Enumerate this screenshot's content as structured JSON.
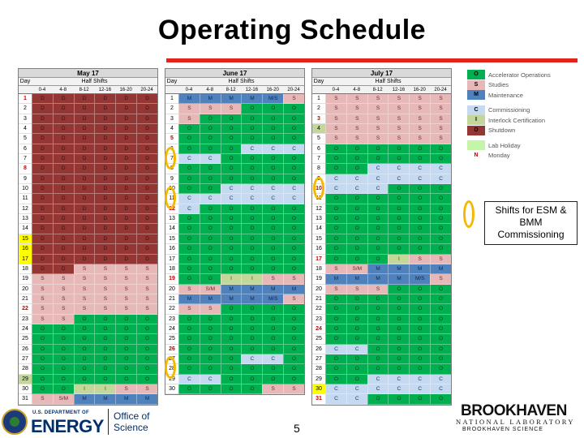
{
  "title": "Operating Schedule",
  "page_number": "5",
  "callout": "Shifts for ESM & BMM Commissioning",
  "months": [
    {
      "name": "May 17",
      "day_label": "Day",
      "half_label": "Half Shifts",
      "cols": [
        "0-4",
        "4-8",
        "8-12",
        "12-16",
        "16-20",
        "20-24"
      ],
      "days": [
        {
          "d": "1",
          "s": "D D D D D D",
          "mark": "red"
        },
        {
          "d": "2",
          "s": "D D D D D D"
        },
        {
          "d": "3",
          "s": "D D D D D D"
        },
        {
          "d": "4",
          "s": "D D D D D D"
        },
        {
          "d": "5",
          "s": "D D D D D D"
        },
        {
          "d": "6",
          "s": "D D D D D D"
        },
        {
          "d": "7",
          "s": "D D D D D D"
        },
        {
          "d": "8",
          "s": "D D D D D D",
          "mark": "red"
        },
        {
          "d": "9",
          "s": "D D D D D D"
        },
        {
          "d": "10",
          "s": "D D D D D D"
        },
        {
          "d": "11",
          "s": "D D D D D D"
        },
        {
          "d": "12",
          "s": "D D D D D D"
        },
        {
          "d": "13",
          "s": "D D D D D D"
        },
        {
          "d": "14",
          "s": "D D D D D D"
        },
        {
          "d": "15",
          "s": "D D D D D D",
          "mark": "yellow"
        },
        {
          "d": "16",
          "s": "D D D D D D",
          "mark": "yellow"
        },
        {
          "d": "17",
          "s": "D D D D D D",
          "mark": "yellow"
        },
        {
          "d": "18",
          "s": "D D S S S S"
        },
        {
          "d": "19",
          "s": "S S S S S S"
        },
        {
          "d": "20",
          "s": "S S S S S S"
        },
        {
          "d": "21",
          "s": "S S S S S S"
        },
        {
          "d": "22",
          "s": "S S S S S S",
          "mark": "red"
        },
        {
          "d": "23",
          "s": "S S O O O O"
        },
        {
          "d": "24",
          "s": "O O O O O O"
        },
        {
          "d": "25",
          "s": "O O O O O O"
        },
        {
          "d": "26",
          "s": "O O O O O O"
        },
        {
          "d": "27",
          "s": "O O O O O O"
        },
        {
          "d": "28",
          "s": "O O O O O O"
        },
        {
          "d": "29",
          "s": "O O O O O O",
          "mark": "green"
        },
        {
          "d": "30",
          "s": "O O I I S S"
        },
        {
          "d": "31",
          "s": "S S/M M M M M"
        }
      ]
    },
    {
      "name": "June 17",
      "day_label": "Day",
      "half_label": "Half Shifts",
      "cols": [
        "0-4",
        "4-8",
        "8-12",
        "12-16",
        "16-20",
        "20-24"
      ],
      "days": [
        {
          "d": "1",
          "s": "M M M M M/S S"
        },
        {
          "d": "2",
          "s": "S S S O O O"
        },
        {
          "d": "3",
          "s": "S O O O O O"
        },
        {
          "d": "4",
          "s": "O O O O O O"
        },
        {
          "d": "5",
          "s": "O O O O O O",
          "mark": "red"
        },
        {
          "d": "6",
          "s": "O O O C C C"
        },
        {
          "d": "7",
          "s": "C C O O O O"
        },
        {
          "d": "8",
          "s": "O O O O O O"
        },
        {
          "d": "9",
          "s": "O O O O O O"
        },
        {
          "d": "10",
          "s": "O O C C C C"
        },
        {
          "d": "11",
          "s": "C C C C C C"
        },
        {
          "d": "12",
          "s": "C O O O O O",
          "mark": "red"
        },
        {
          "d": "13",
          "s": "O O O O O O"
        },
        {
          "d": "14",
          "s": "O O O O O O"
        },
        {
          "d": "15",
          "s": "O O O O O O"
        },
        {
          "d": "16",
          "s": "O O O O O O"
        },
        {
          "d": "17",
          "s": "O O O O O O"
        },
        {
          "d": "18",
          "s": "O O O O O O"
        },
        {
          "d": "19",
          "s": "O O I I S S",
          "mark": "red"
        },
        {
          "d": "20",
          "s": "S S/M M M M M"
        },
        {
          "d": "21",
          "s": "M M M M M/S S"
        },
        {
          "d": "22",
          "s": "S S O O O O"
        },
        {
          "d": "23",
          "s": "O O O O O O"
        },
        {
          "d": "24",
          "s": "O O O O O O"
        },
        {
          "d": "25",
          "s": "O O O O O O"
        },
        {
          "d": "26",
          "s": "O O O O O O",
          "mark": "red"
        },
        {
          "d": "27",
          "s": "O O O C C O"
        },
        {
          "d": "28",
          "s": "O O O O O O"
        },
        {
          "d": "29",
          "s": "C C O O O O"
        },
        {
          "d": "30",
          "s": "O O O O S S"
        }
      ]
    },
    {
      "name": "July 17",
      "day_label": "Day",
      "half_label": "Half Shifts",
      "cols": [
        "0-4",
        "4-8",
        "8-12",
        "12-16",
        "16-20",
        "20-24"
      ],
      "days": [
        {
          "d": "1",
          "s": "S S S S S S"
        },
        {
          "d": "2",
          "s": "S S S S S S"
        },
        {
          "d": "3",
          "s": "S S S S S S",
          "mark": "red"
        },
        {
          "d": "4",
          "s": "S S S S S S",
          "mark": "green"
        },
        {
          "d": "5",
          "s": "S S S S S S"
        },
        {
          "d": "6",
          "s": "O O O O O O"
        },
        {
          "d": "7",
          "s": "O O O O O O"
        },
        {
          "d": "8",
          "s": "O O C C C C"
        },
        {
          "d": "9",
          "s": "C C C C C C"
        },
        {
          "d": "10",
          "s": "C C C O O O",
          "mark": "red"
        },
        {
          "d": "11",
          "s": "O O O O O O"
        },
        {
          "d": "12",
          "s": "O O O O O O"
        },
        {
          "d": "13",
          "s": "O O O O O O"
        },
        {
          "d": "14",
          "s": "O O O O O O"
        },
        {
          "d": "15",
          "s": "O O O O O O"
        },
        {
          "d": "16",
          "s": "O O O O O O"
        },
        {
          "d": "17",
          "s": "O O O I S S",
          "mark": "red"
        },
        {
          "d": "18",
          "s": "S S/M M M M M"
        },
        {
          "d": "19",
          "s": "M M M M M/S S"
        },
        {
          "d": "20",
          "s": "S S S O O O"
        },
        {
          "d": "21",
          "s": "O O O O O O"
        },
        {
          "d": "22",
          "s": "O O O O O O"
        },
        {
          "d": "23",
          "s": "O O O O O O"
        },
        {
          "d": "24",
          "s": "O O O O O O",
          "mark": "red"
        },
        {
          "d": "25",
          "s": "O O O O O O"
        },
        {
          "d": "26",
          "s": "C C O O O O"
        },
        {
          "d": "27",
          "s": "O O O O O O"
        },
        {
          "d": "28",
          "s": "O O O O O O"
        },
        {
          "d": "29",
          "s": "O O C C C C"
        },
        {
          "d": "30",
          "s": "C C C C C C",
          "mark": "yellow"
        },
        {
          "d": "31",
          "s": "C C O O O O",
          "mark": "red"
        }
      ]
    }
  ],
  "legend": [
    {
      "code": "O",
      "label": "Accelerator Operations",
      "color": "#00b050"
    },
    {
      "code": "S",
      "label": "Studies",
      "color": "#e6b8b7"
    },
    {
      "code": "M",
      "label": "Maintenance",
      "color": "#4f81bd"
    },
    {
      "gap": true
    },
    {
      "code": "C",
      "label": "Commissioning",
      "color": "#c5d9f1"
    },
    {
      "code": "I",
      "label": "Interlock Certification",
      "color": "#c4d79b"
    },
    {
      "code": "D",
      "label": "Shutdown",
      "color": "#943634"
    },
    {
      "gap": true
    },
    {
      "code": "",
      "label": "Lab Holiday",
      "color": "#c4f5a8"
    },
    {
      "code": "N",
      "label": "Monday",
      "color": "#ffffff",
      "text_color": "#c00000"
    }
  ],
  "doe": {
    "small": "U.S. DEPARTMENT OF",
    "big": "ENERGY",
    "office1": "Office of",
    "office2": "Science"
  },
  "bnl": {
    "big": "BROOKHAVEN",
    "lab": "NATIONAL LABORATORY",
    "sci": "BROOKHAVEN SCIENCE"
  }
}
